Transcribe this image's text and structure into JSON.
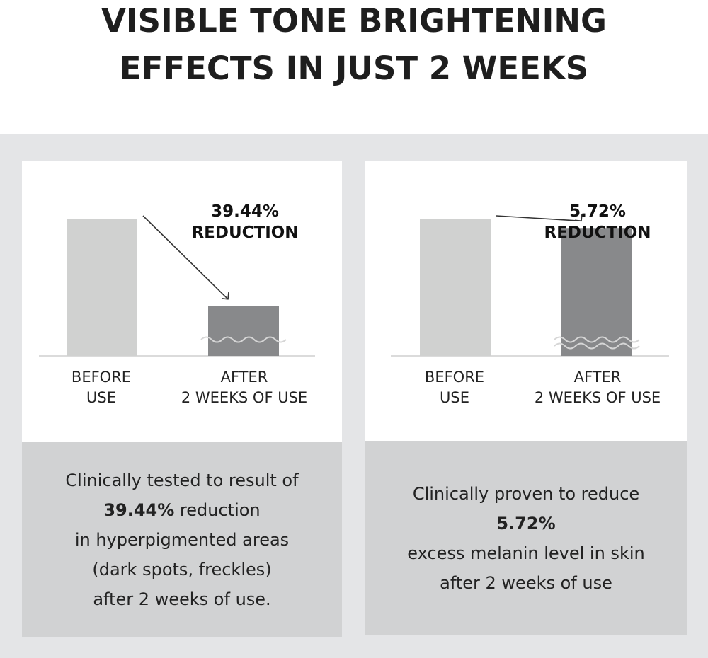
{
  "title": {
    "line1": "VISIBLE TONE BRIGHTENING",
    "line2": "EFFECTS IN JUST 2 WEEKS"
  },
  "colors": {
    "before_bar": "#d0d1d0",
    "after_bar": "#88898b",
    "band": "#e4e5e7",
    "caption_bg": "#d1d2d3"
  },
  "chart_data": [
    {
      "type": "bar",
      "categories": [
        "BEFORE USE",
        "AFTER 2 WEEKS OF USE"
      ],
      "values": [
        100,
        60.56
      ],
      "axis_break": true,
      "annotation": {
        "value": "39.44%",
        "label": "REDUCTION"
      },
      "xlabel": "",
      "ylabel": "",
      "grid": false
    },
    {
      "type": "bar",
      "categories": [
        "BEFORE USE",
        "AFTER 2 WEEKS OF USE"
      ],
      "values": [
        100,
        94.28
      ],
      "axis_break": true,
      "annotation": {
        "value": "5.72%",
        "label": "REDUCTION"
      },
      "xlabel": "",
      "ylabel": "",
      "grid": false
    }
  ],
  "cards": [
    {
      "before": {
        "l1": "BEFORE",
        "l2": "USE"
      },
      "after": {
        "l1": "AFTER",
        "l2": "2 WEEKS OF USE"
      },
      "caption": {
        "l1": "Clinically tested to result of",
        "l2_bold": "39.44%",
        "l2_rest": " reduction",
        "l3": "in hyperpigmented areas",
        "l4": "(dark spots, freckles)",
        "l5": "after 2 weeks of use."
      }
    },
    {
      "before": {
        "l1": "BEFORE",
        "l2": "USE"
      },
      "after": {
        "l1": "AFTER",
        "l2": "2 WEEKS OF USE"
      },
      "caption": {
        "l1": "Clinically proven to reduce",
        "l2_bold": "5.72%",
        "l3": "excess melanin level in skin",
        "l4": "after 2 weeks of use"
      }
    }
  ]
}
